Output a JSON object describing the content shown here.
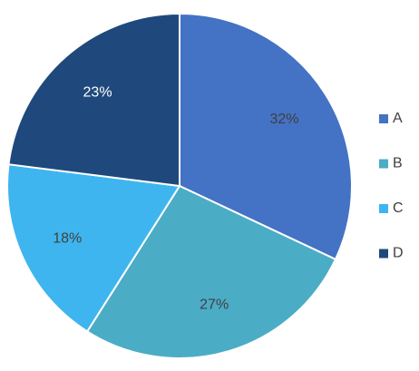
{
  "chart_data": {
    "type": "pie",
    "categories": [
      "A",
      "B",
      "C",
      "D"
    ],
    "values": [
      32,
      27,
      18,
      23
    ],
    "value_labels": [
      "32%",
      "27%",
      "18%",
      "23%"
    ],
    "colors": [
      "#4472c4",
      "#4bacc6",
      "#3fb5ef",
      "#1f497d"
    ],
    "legend": "right"
  }
}
